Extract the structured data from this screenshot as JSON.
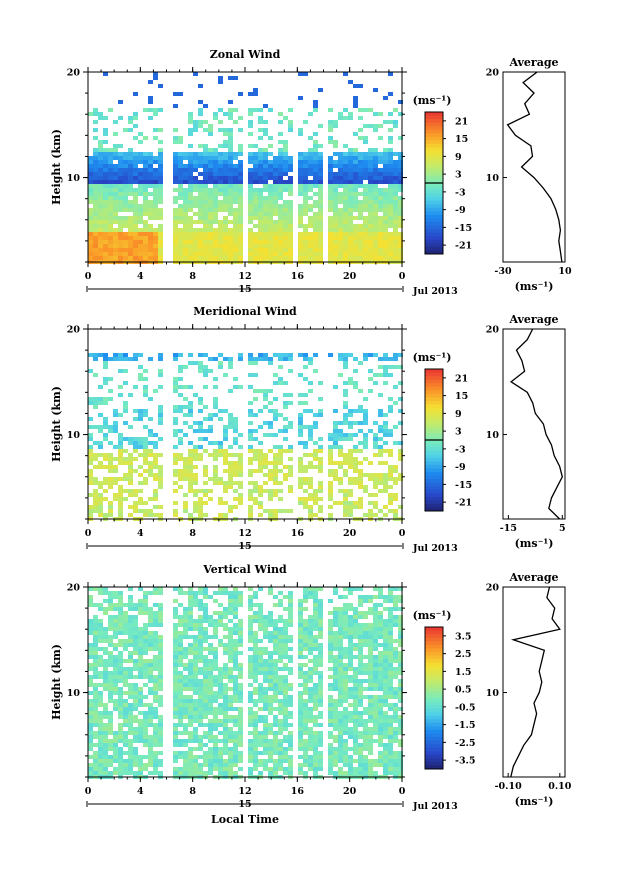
{
  "chart_data": [
    {
      "type": "heatmap",
      "title": "Zonal Wind",
      "ylabel": "Height (km)",
      "yticks": [
        "20",
        "10"
      ],
      "ylim": [
        2,
        20
      ],
      "xticks": [
        "0",
        "4",
        "8",
        "12",
        "16",
        "20",
        "0"
      ],
      "xlim": [
        0,
        24
      ],
      "date_day": "15",
      "date_month": "Jul 2013",
      "gaps_hours": [
        [
          5.5,
          6.2
        ],
        [
          11.8,
          12.2
        ],
        [
          15.6,
          16.0
        ],
        [
          17.8,
          18.2
        ]
      ],
      "colorbar": {
        "unit": "(ms⁻¹)",
        "ticks": [
          "21",
          "15",
          "9",
          "3",
          "-3",
          "-9",
          "-15",
          "-21"
        ],
        "range": [
          -24,
          24
        ]
      },
      "profile": {
        "title": "Average",
        "yticks": [
          "20",
          "10"
        ],
        "xticks": [
          "-30",
          "10"
        ],
        "xlim": [
          -30,
          10
        ],
        "xlabel": "(ms⁻¹)",
        "height_km": [
          2,
          3,
          4,
          5,
          6,
          7,
          8,
          9,
          10,
          11,
          12,
          13,
          14,
          15,
          16,
          17,
          18,
          19,
          20
        ],
        "value": [
          8,
          7,
          6,
          7,
          6,
          4,
          1,
          -4,
          -10,
          -18,
          -11,
          -12,
          -22,
          -27,
          -13,
          -16,
          -10,
          -17,
          -8
        ]
      }
    },
    {
      "type": "heatmap",
      "title": "Meridional Wind",
      "ylabel": "Height (km)",
      "yticks": [
        "20",
        "10"
      ],
      "ylim": [
        2,
        20
      ],
      "xticks": [
        "0",
        "4",
        "8",
        "12",
        "16",
        "20",
        "0"
      ],
      "xlim": [
        0,
        24
      ],
      "date_day": "15",
      "date_month": "Jul 2013",
      "gaps_hours": [
        [
          5.5,
          6.2
        ],
        [
          11.8,
          12.2
        ],
        [
          15.6,
          16.0
        ],
        [
          17.8,
          18.2
        ]
      ],
      "colorbar": {
        "unit": "(ms⁻¹)",
        "ticks": [
          "21",
          "15",
          "9",
          "3",
          "-3",
          "-9",
          "-15",
          "-21"
        ],
        "range": [
          -24,
          24
        ]
      },
      "profile": {
        "title": "Average",
        "yticks": [
          "20",
          "10"
        ],
        "xticks": [
          "-15",
          "5"
        ],
        "xlim": [
          -17,
          6
        ],
        "xlabel": "(ms⁻¹)",
        "height_km": [
          2,
          3,
          4,
          5,
          6,
          7,
          8,
          9,
          10,
          11,
          12,
          13,
          14,
          15,
          16,
          17,
          18,
          19,
          20
        ],
        "value": [
          4,
          0,
          1,
          3,
          5,
          4,
          2,
          1,
          -1,
          -2,
          -5,
          -6,
          -8,
          -14,
          -9,
          -10,
          -12,
          -8,
          -6
        ]
      }
    },
    {
      "type": "heatmap",
      "title": "Vertical Wind",
      "ylabel": "Height (km)",
      "yticks": [
        "20",
        "10"
      ],
      "ylim": [
        2,
        20
      ],
      "xticks": [
        "0",
        "4",
        "8",
        "12",
        "16",
        "20",
        "0"
      ],
      "xlim": [
        0,
        24
      ],
      "xlabel": "Local Time",
      "date_day": "15",
      "date_month": "Jul 2013",
      "gaps_hours": [
        [
          5.5,
          6.2
        ],
        [
          11.8,
          12.2
        ],
        [
          15.6,
          16.0
        ],
        [
          17.8,
          18.2
        ]
      ],
      "colorbar": {
        "unit": "(ms⁻¹)",
        "ticks": [
          "3.5",
          "2.5",
          "1.5",
          "0.5",
          "-0.5",
          "-1.5",
          "-2.5",
          "-3.5"
        ],
        "range": [
          -4,
          4
        ]
      },
      "profile": {
        "title": "Average",
        "yticks": [
          "20",
          "10"
        ],
        "xticks": [
          "-0.10",
          "0.10"
        ],
        "xlim": [
          -0.12,
          0.12
        ],
        "xlabel": "(ms⁻¹)",
        "height_km": [
          2,
          3,
          4,
          5,
          6,
          7,
          8,
          9,
          10,
          11,
          12,
          13,
          14,
          15,
          16,
          17,
          18,
          19,
          20
        ],
        "value": [
          -0.09,
          -0.08,
          -0.06,
          -0.04,
          -0.01,
          0.0,
          0.01,
          0.0,
          0.02,
          0.03,
          0.02,
          0.03,
          0.04,
          -0.08,
          0.1,
          0.07,
          0.08,
          0.05,
          0.06
        ]
      }
    }
  ]
}
